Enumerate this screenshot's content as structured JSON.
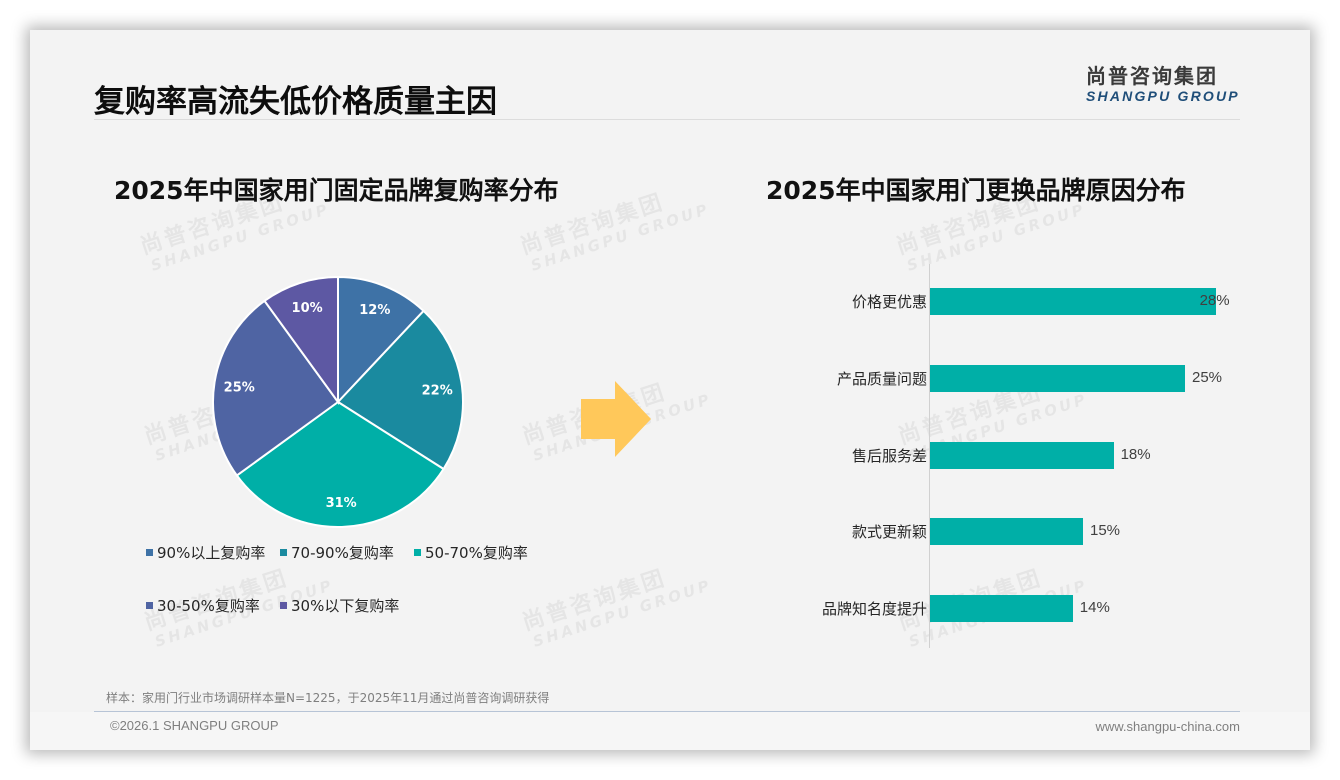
{
  "page": {
    "title": "复购率高流失低价格质量主因",
    "logo": {
      "cn": "尚普咨询集团",
      "en": "SHANGPU GROUP"
    },
    "watermark": {
      "cn": "尚普咨询集团",
      "en": "SHANGPU GROUP"
    },
    "note": "样本：家用门行业市场调研样本量N=1225，于2025年11月通过尚普咨询调研获得",
    "copyright": "©2026.1 SHANGPU GROUP",
    "website": "www.shangpu-china.com",
    "arrow_color": "#ffc85a"
  },
  "chart_data": [
    {
      "type": "pie",
      "title": "2025年中国家用门固定品牌复购率分布",
      "categories": [
        "90%以上复购率",
        "70-90%复购率",
        "50-70%复购率",
        "30-50%复购率",
        "30%以下复购率"
      ],
      "values": [
        12,
        22,
        31,
        25,
        10
      ],
      "labels": [
        "12%",
        "22%",
        "31%",
        "25%",
        "10%"
      ],
      "colors": [
        "#3e72a6",
        "#1a8a9f",
        "#00afa7",
        "#4f64a3",
        "#5d58a3"
      ],
      "start_angle": "12 o'clock",
      "direction": "clockwise",
      "legend_position": "bottom"
    },
    {
      "type": "bar",
      "orientation": "horizontal",
      "title": "2025年中国家用门更换品牌原因分布",
      "categories": [
        "价格更优惠",
        "产品质量问题",
        "售后服务差",
        "款式更新颖",
        "品牌知名度提升"
      ],
      "values": [
        28,
        25,
        18,
        15,
        14
      ],
      "labels": [
        "28%",
        "25%",
        "18%",
        "15%",
        "14%"
      ],
      "color": "#00afa7",
      "xlabel": "",
      "ylabel": "",
      "grid": false
    }
  ]
}
